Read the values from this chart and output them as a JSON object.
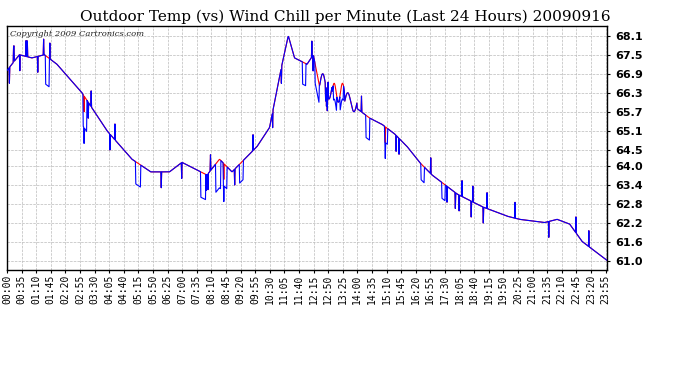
{
  "title": "Outdoor Temp (vs) Wind Chill per Minute (Last 24 Hours) 20090916",
  "copyright_text": "Copyright 2009 Cartronics.com",
  "yticks": [
    61.0,
    61.6,
    62.2,
    62.8,
    63.4,
    64.0,
    64.5,
    65.1,
    65.7,
    66.3,
    66.9,
    67.5,
    68.1
  ],
  "ymin": 60.7,
  "ymax": 68.4,
  "background_color": "#ffffff",
  "plot_bg_color": "#ffffff",
  "grid_color": "#bbbbbb",
  "line_color_red": "#ff0000",
  "line_color_blue": "#0000ff",
  "title_fontsize": 11,
  "tick_fontsize": 7,
  "copyright_fontsize": 6
}
